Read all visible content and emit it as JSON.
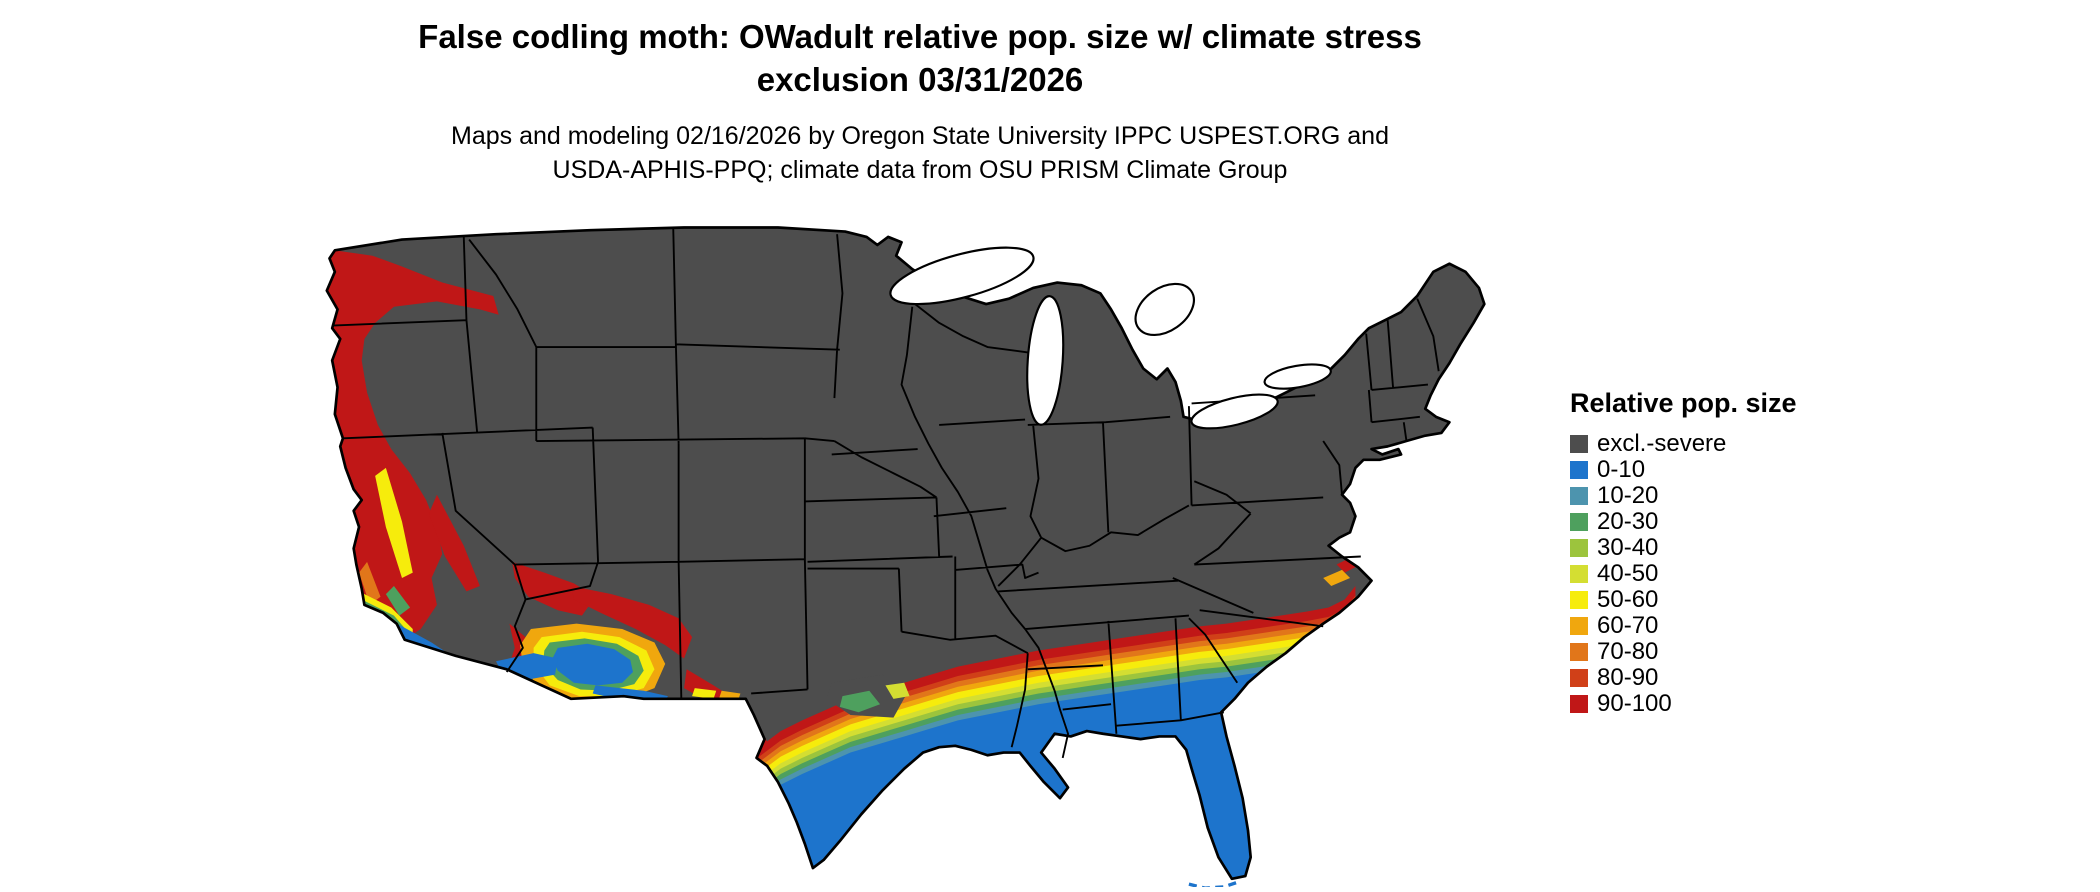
{
  "header": {
    "title_lines": [
      "False codling moth: OWadult relative pop. size w/ climate stress",
      "exclusion 03/31/2026"
    ],
    "subtitle_lines": [
      "Maps and modeling 02/16/2026 by Oregon State University IPPC USPEST.ORG and",
      "USDA-APHIS-PPQ; climate data from OSU PRISM Climate Group"
    ]
  },
  "map": {
    "region": "contiguous United States",
    "background": "#ffffff",
    "border_color": "#000000",
    "water_color": "#ffffff"
  },
  "legend": {
    "title": "Relative pop. size",
    "items": [
      {
        "label": "excl.-severe",
        "color": "#4d4d4d"
      },
      {
        "label": "0-10",
        "color": "#1d74cc"
      },
      {
        "label": "10-20",
        "color": "#4d94ae"
      },
      {
        "label": "20-30",
        "color": "#4ea05e"
      },
      {
        "label": "30-40",
        "color": "#9cc43d"
      },
      {
        "label": "40-50",
        "color": "#d4de32"
      },
      {
        "label": "50-60",
        "color": "#f6ec0c"
      },
      {
        "label": "60-70",
        "color": "#f0a70e"
      },
      {
        "label": "70-80",
        "color": "#e1761a"
      },
      {
        "label": "80-90",
        "color": "#d04018"
      },
      {
        "label": "90-100",
        "color": "#c01717"
      }
    ]
  }
}
